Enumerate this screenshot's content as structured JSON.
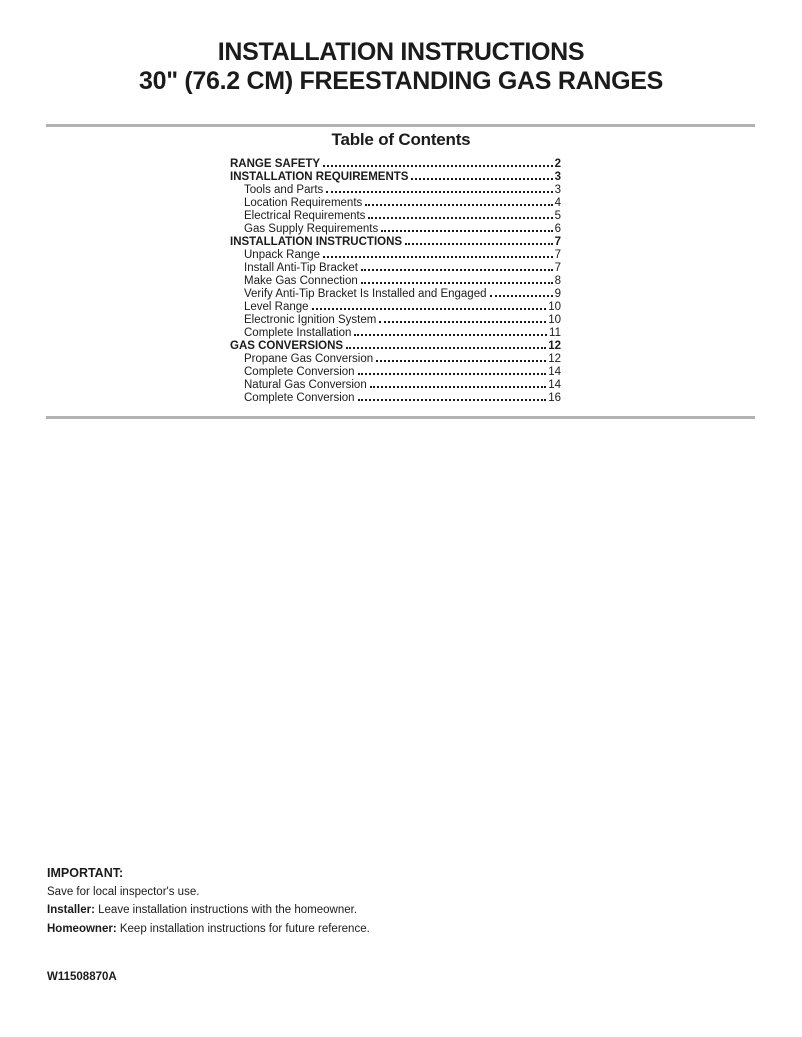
{
  "header": {
    "title_line1": "INSTALLATION INSTRUCTIONS",
    "title_line2": "30\" (76.2 CM) FREESTANDING GAS RANGES"
  },
  "toc": {
    "heading": "Table of Contents",
    "entries": [
      {
        "label": "RANGE SAFETY",
        "page": "2",
        "level": 0
      },
      {
        "label": "INSTALLATION REQUIREMENTS",
        "page": "3",
        "level": 0
      },
      {
        "label": "Tools and Parts",
        "page": "3",
        "level": 1
      },
      {
        "label": "Location Requirements",
        "page": "4",
        "level": 1
      },
      {
        "label": "Electrical Requirements",
        "page": "5",
        "level": 1
      },
      {
        "label": "Gas Supply Requirements",
        "page": "6",
        "level": 1
      },
      {
        "label": "INSTALLATION INSTRUCTIONS",
        "page": "7",
        "level": 0
      },
      {
        "label": "Unpack Range",
        "page": "7",
        "level": 1
      },
      {
        "label": "Install Anti-Tip Bracket",
        "page": "7",
        "level": 1
      },
      {
        "label": "Make Gas Connection",
        "page": "8",
        "level": 1
      },
      {
        "label": "Verify Anti-Tip Bracket Is Installed and Engaged",
        "page": "9",
        "level": 1
      },
      {
        "label": "Level Range",
        "page": "10",
        "level": 1
      },
      {
        "label": "Electronic Ignition System",
        "page": "10",
        "level": 1
      },
      {
        "label": "Complete Installation",
        "page": "11",
        "level": 1
      },
      {
        "label": "GAS CONVERSIONS",
        "page": "12",
        "level": 0
      },
      {
        "label": "Propane Gas Conversion",
        "page": "12",
        "level": 1
      },
      {
        "label": "Complete Conversion",
        "page": "14",
        "level": 1
      },
      {
        "label": "Natural Gas Conversion",
        "page": "14",
        "level": 1
      },
      {
        "label": "Complete Conversion",
        "page": "16",
        "level": 1
      }
    ]
  },
  "footer": {
    "important_label": "IMPORTANT:",
    "save_line": "Save for local inspector's use.",
    "installer_label": "Installer:",
    "installer_text": " Leave installation instructions with the homeowner.",
    "homeowner_label": "Homeowner:",
    "homeowner_text": " Keep installation instructions for future reference."
  },
  "doc_number": "W11508870A",
  "colors": {
    "rule": "#b2b2b2",
    "text": "#1b1b1b",
    "background": "#ffffff"
  }
}
